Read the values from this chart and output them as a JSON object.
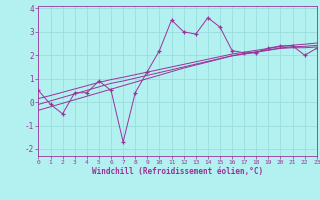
{
  "xlabel": "Windchill (Refroidissement éolien,°C)",
  "background_color": "#b3f0f0",
  "grid_color": "#99dddd",
  "line_color": "#993399",
  "x_data": [
    0,
    1,
    2,
    3,
    4,
    5,
    6,
    7,
    8,
    9,
    10,
    11,
    12,
    13,
    14,
    15,
    16,
    17,
    18,
    19,
    20,
    21,
    22,
    23
  ],
  "y_main": [
    0.5,
    -0.1,
    -0.5,
    0.4,
    0.4,
    0.9,
    0.5,
    -1.7,
    0.4,
    1.3,
    2.2,
    3.5,
    3.0,
    2.9,
    3.6,
    3.2,
    2.2,
    2.1,
    2.1,
    2.3,
    2.4,
    2.4,
    2.0,
    2.3
  ],
  "y_trend1": [
    -0.35,
    -0.2,
    -0.05,
    0.1,
    0.25,
    0.4,
    0.55,
    0.7,
    0.85,
    1.0,
    1.15,
    1.3,
    1.45,
    1.58,
    1.71,
    1.84,
    1.97,
    2.05,
    2.13,
    2.21,
    2.29,
    2.32,
    2.32,
    2.35
  ],
  "y_trend2": [
    -0.1,
    0.05,
    0.2,
    0.35,
    0.5,
    0.65,
    0.8,
    0.9,
    1.02,
    1.14,
    1.26,
    1.38,
    1.5,
    1.62,
    1.74,
    1.86,
    1.98,
    2.07,
    2.15,
    2.23,
    2.31,
    2.36,
    2.38,
    2.42
  ],
  "y_trend3": [
    0.15,
    0.28,
    0.42,
    0.56,
    0.7,
    0.84,
    0.96,
    1.06,
    1.17,
    1.28,
    1.39,
    1.5,
    1.61,
    1.72,
    1.83,
    1.94,
    2.05,
    2.13,
    2.21,
    2.29,
    2.37,
    2.43,
    2.47,
    2.52
  ],
  "xlim": [
    0,
    23
  ],
  "ylim": [
    -2.3,
    4.1
  ],
  "yticks": [
    -2,
    -1,
    0,
    1,
    2,
    3,
    4
  ],
  "xticks": [
    0,
    1,
    2,
    3,
    4,
    5,
    6,
    7,
    8,
    9,
    10,
    11,
    12,
    13,
    14,
    15,
    16,
    17,
    18,
    19,
    20,
    21,
    22,
    23
  ]
}
